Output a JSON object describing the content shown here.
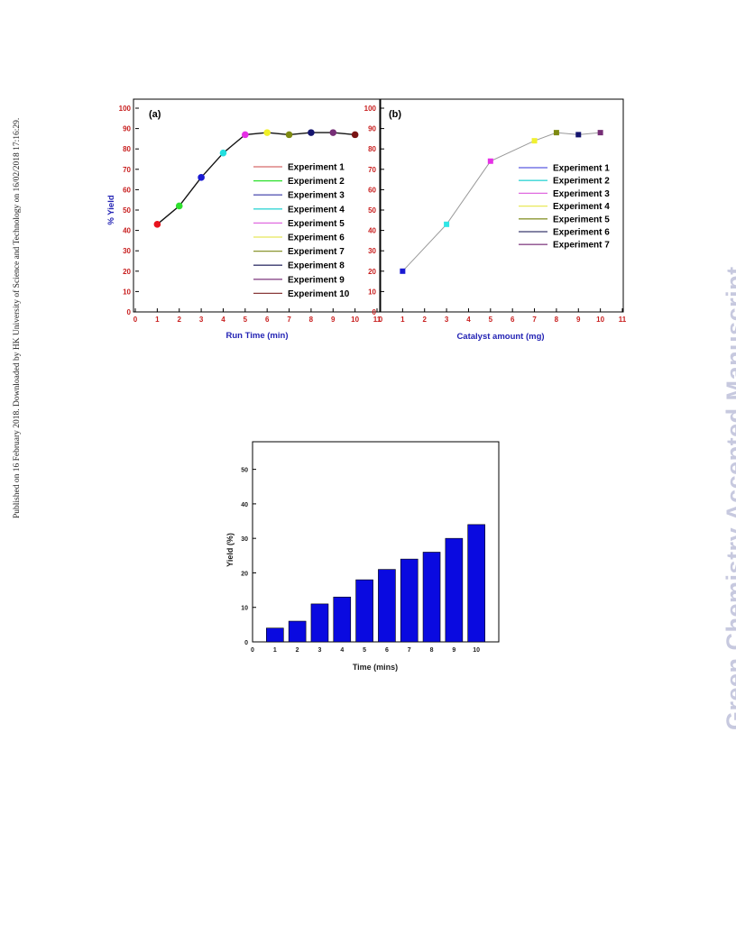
{
  "side_note": "Published on 16 February 2018. Downloaded by HK University of Science and Technology on 16/02/2018 17:16:29.",
  "watermark": "Green Chemistry Accepted Manuscript",
  "chart_data": [
    {
      "type": "line",
      "panel_label": "(a)",
      "title": "",
      "xlabel": "Run Time (min)",
      "ylabel": "% Yield",
      "xlim": [
        0,
        11
      ],
      "ylim": [
        0,
        100
      ],
      "xticks": [
        "0",
        "1",
        "2",
        "3",
        "4",
        "5",
        "6",
        "7",
        "8",
        "9",
        "10",
        "11"
      ],
      "yticks": [
        "0",
        "10",
        "20",
        "30",
        "40",
        "50",
        "60",
        "70",
        "80",
        "90",
        "100"
      ],
      "x": [
        1,
        2,
        3,
        4,
        5,
        6,
        7,
        8,
        9,
        10
      ],
      "y": [
        43,
        52,
        66,
        78,
        87,
        88,
        87,
        88,
        88,
        87
      ],
      "point_colors": [
        "#e8141e",
        "#2ee02e",
        "#1a1ad2",
        "#22dede",
        "#e62ee6",
        "#f0f028",
        "#7e8a12",
        "#14146e",
        "#762e76",
        "#7a1414"
      ],
      "marker": "circle",
      "line_color": "#111111",
      "legend": {
        "position": "right",
        "entries": [
          "Experiment 1",
          "Experiment 2",
          "Experiment 3",
          "Experiment 4",
          "Experiment 5",
          "Experiment 6",
          "Experiment 7",
          "Experiment 8",
          "Experiment 9",
          "Experiment 10"
        ],
        "colors": [
          "#d86a6a",
          "#2ee02e",
          "#5a5ab4",
          "#36d6d6",
          "#e06ae0",
          "#e8e85a",
          "#8a9630",
          "#3a3a6e",
          "#8a4a8a",
          "#8a3a3a"
        ]
      }
    },
    {
      "type": "line",
      "panel_label": "(b)",
      "title": "",
      "xlabel": "Catalyst amount (mg)",
      "ylabel": "",
      "xlim": [
        0,
        11
      ],
      "ylim": [
        0,
        100
      ],
      "xticks": [
        "0",
        "1",
        "2",
        "3",
        "4",
        "5",
        "6",
        "7",
        "8",
        "9",
        "10",
        "11"
      ],
      "yticks": [
        "0",
        "10",
        "20",
        "30",
        "40",
        "50",
        "60",
        "70",
        "80",
        "90",
        "100"
      ],
      "x": [
        1,
        3,
        5,
        7,
        8,
        9,
        10
      ],
      "y": [
        20,
        43,
        74,
        84,
        88,
        87,
        88
      ],
      "point_colors": [
        "#1a1ad2",
        "#30e6e6",
        "#e630e6",
        "#f0f030",
        "#7e8a12",
        "#14146e",
        "#762e76"
      ],
      "marker": "square",
      "line_color": "#999999",
      "legend": {
        "position": "right",
        "entries": [
          "Experiment 1",
          "Experiment 2",
          "Experiment 3",
          "Experiment 4",
          "Experiment 5",
          "Experiment 6",
          "Experiment 7"
        ],
        "colors": [
          "#5a5ae0",
          "#36d6d6",
          "#e06ae0",
          "#e8e85a",
          "#8a9630",
          "#3a3a6e",
          "#8a4a8a"
        ]
      }
    },
    {
      "type": "bar",
      "title": "",
      "xlabel": "Time (mins)",
      "ylabel": "Yield (%)",
      "xlim": [
        0,
        11
      ],
      "ylim": [
        0,
        58
      ],
      "xticks": [
        "0",
        "1",
        "2",
        "3",
        "4",
        "5",
        "6",
        "7",
        "8",
        "9",
        "10"
      ],
      "yticks": [
        "0",
        "10",
        "20",
        "30",
        "40",
        "50"
      ],
      "categories": [
        "1",
        "2",
        "3",
        "4",
        "5",
        "6",
        "7",
        "8",
        "9",
        "10"
      ],
      "values": [
        4,
        6,
        11,
        13,
        18,
        21,
        24,
        26,
        30,
        34
      ],
      "bar_color": "#0a0ae0"
    }
  ]
}
